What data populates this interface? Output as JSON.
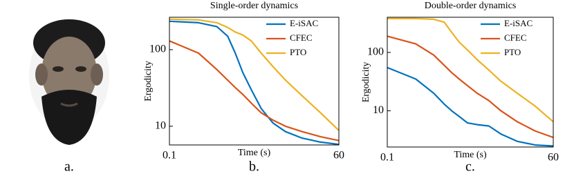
{
  "panel_a": {
    "caption": "a."
  },
  "chart_data": [
    {
      "type": "line",
      "title": "Single-order dynamics",
      "caption": "b.",
      "xlabel": "Time (s)",
      "ylabel": "Ergodicity",
      "log_x": true,
      "log_y": true,
      "legend": "upper right",
      "x": [
        0.1,
        0.3,
        0.6,
        0.9,
        1.2,
        1.6,
        2.2,
        3.2,
        5,
        8,
        15,
        30,
        60
      ],
      "series": [
        {
          "name": "E-iSAC",
          "color": "#0072bd",
          "values": [
            235,
            225,
            200,
            150,
            90,
            50,
            30,
            17,
            11,
            8.5,
            7,
            6.2,
            5.8
          ]
        },
        {
          "name": "CFEC",
          "color": "#d95319",
          "values": [
            130,
            90,
            55,
            40,
            32,
            26,
            20,
            15,
            12,
            10,
            8.5,
            7.3,
            6.5
          ]
        },
        {
          "name": "PTO",
          "color": "#edb120",
          "values": [
            250,
            245,
            225,
            195,
            170,
            155,
            130,
            90,
            60,
            40,
            25,
            15,
            8.8
          ]
        }
      ],
      "xlim": [
        0.1,
        60
      ],
      "xticks": [
        0.1,
        60
      ],
      "ylim": [
        5.7,
        265
      ],
      "yticks": [
        10,
        100
      ]
    },
    {
      "type": "line",
      "title": "Double-order dynamics",
      "caption": "c.",
      "xlabel": "Time (s)",
      "ylabel": "Ergodicity",
      "log_x": true,
      "log_y": true,
      "legend": "upper right",
      "x": [
        0.1,
        0.3,
        0.6,
        0.9,
        1.2,
        1.6,
        2.2,
        3.2,
        5,
        8,
        15,
        30,
        60
      ],
      "series": [
        {
          "name": "E-iSAC",
          "color": "#0072bd",
          "values": [
            55,
            35,
            20,
            13,
            10,
            8,
            6.2,
            5.8,
            5.5,
            4,
            3,
            2.6,
            2.5
          ]
        },
        {
          "name": "CFEC",
          "color": "#d95319",
          "values": [
            190,
            140,
            90,
            60,
            45,
            35,
            27,
            20,
            15,
            10,
            6.5,
            4.5,
            3.5
          ]
        },
        {
          "name": "PTO",
          "color": "#edb120",
          "values": [
            380,
            380,
            370,
            330,
            220,
            150,
            110,
            75,
            50,
            32,
            20,
            12,
            6.5
          ]
        }
      ],
      "xlim": [
        0.1,
        60
      ],
      "xticks": [
        0.1,
        60
      ],
      "ylim": [
        2.4,
        400
      ],
      "yticks": [
        10,
        100
      ]
    }
  ]
}
